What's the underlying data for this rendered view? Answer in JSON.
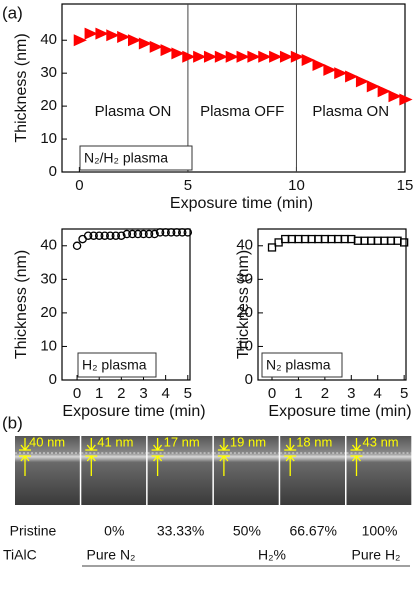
{
  "panel_labels": [
    "(a)",
    "(b)"
  ],
  "chart_data": [
    {
      "type": "scatter",
      "xlabel": "Exposure time (min)",
      "ylabel": "Thickness (nm)",
      "xlim": [
        -0.8,
        15
      ],
      "ylim": [
        0,
        51
      ],
      "xticks": [
        0,
        5,
        10,
        15
      ],
      "yticks": [
        0,
        10,
        20,
        30,
        40
      ],
      "vlines": [
        5,
        10
      ],
      "annotations": [
        "Plasma ON",
        "Plasma OFF",
        "Plasma ON"
      ],
      "legend_box": "N₂/H₂ plasma",
      "series": [
        {
          "marker": "triangle-right",
          "color": "#ff0000",
          "x": [
            0,
            0.5,
            1,
            1.5,
            2,
            2.5,
            3,
            3.5,
            4,
            4.5,
            5,
            5.5,
            6,
            6.5,
            7,
            7.5,
            8,
            8.5,
            9,
            9.5,
            10,
            10.5,
            11,
            11.5,
            12,
            12.5,
            13,
            13.5,
            14,
            14.5,
            15
          ],
          "values": [
            40,
            42,
            42,
            41.5,
            41,
            40,
            39,
            38,
            37,
            36,
            35,
            35,
            35,
            35,
            35,
            35,
            35,
            35,
            35,
            35,
            35,
            34,
            32.5,
            31,
            30,
            29,
            27.5,
            26,
            24.5,
            23,
            22
          ]
        }
      ]
    },
    {
      "type": "scatter",
      "xlabel": "Exposure time (min)",
      "ylabel": "Thickness (nm)",
      "xlim": [
        -0.68,
        5.1
      ],
      "ylim": [
        0,
        45
      ],
      "xticks": [
        0,
        1,
        2,
        3,
        4,
        5
      ],
      "yticks": [
        0,
        10,
        20,
        30,
        40
      ],
      "legend_box": "H₂ plasma",
      "series": [
        {
          "marker": "circle",
          "color": "#000000",
          "x": [
            0,
            0.25,
            0.5,
            0.75,
            1,
            1.25,
            1.5,
            1.75,
            2,
            2.25,
            2.5,
            2.75,
            3,
            3.25,
            3.5,
            3.75,
            4,
            4.25,
            4.5,
            4.75,
            5
          ],
          "values": [
            40,
            42,
            43,
            43,
            43,
            43,
            43,
            43,
            43,
            43.5,
            43.5,
            43.5,
            43.5,
            43.5,
            43.5,
            44,
            44,
            44,
            44,
            44,
            44
          ]
        }
      ]
    },
    {
      "type": "scatter",
      "xlabel": "Exposure time (min)",
      "ylabel": "Thickness (nm)",
      "xlim": [
        -0.53,
        5.07
      ],
      "ylim": [
        0,
        45
      ],
      "xticks": [
        0,
        1,
        2,
        3,
        4,
        5
      ],
      "yticks": [
        0,
        10,
        20,
        30,
        40
      ],
      "legend_box": "N₂ plasma",
      "series": [
        {
          "marker": "square",
          "color": "#000000",
          "x": [
            0,
            0.25,
            0.5,
            0.75,
            1,
            1.25,
            1.5,
            1.75,
            2,
            2.25,
            2.5,
            2.75,
            3,
            3.25,
            3.5,
            3.75,
            4,
            4.25,
            4.5,
            4.75,
            5
          ],
          "values": [
            39.5,
            41,
            42,
            42,
            42,
            42,
            42,
            42,
            42,
            42,
            42,
            42,
            42,
            41.5,
            41.5,
            41.5,
            41.5,
            41.5,
            41.5,
            41.5,
            41
          ]
        }
      ]
    }
  ],
  "images": {
    "tiles": [
      "40 nm",
      "41 nm",
      "17 nm",
      "19 nm",
      "18 nm",
      "43 nm"
    ],
    "compositions": [
      "Pristine",
      "0%",
      "33.33%",
      "50%",
      "66.67%",
      "100%"
    ],
    "material": "TiAlC",
    "scale_labels": [
      "Pure N₂",
      "H₂%",
      "Pure H₂"
    ]
  }
}
